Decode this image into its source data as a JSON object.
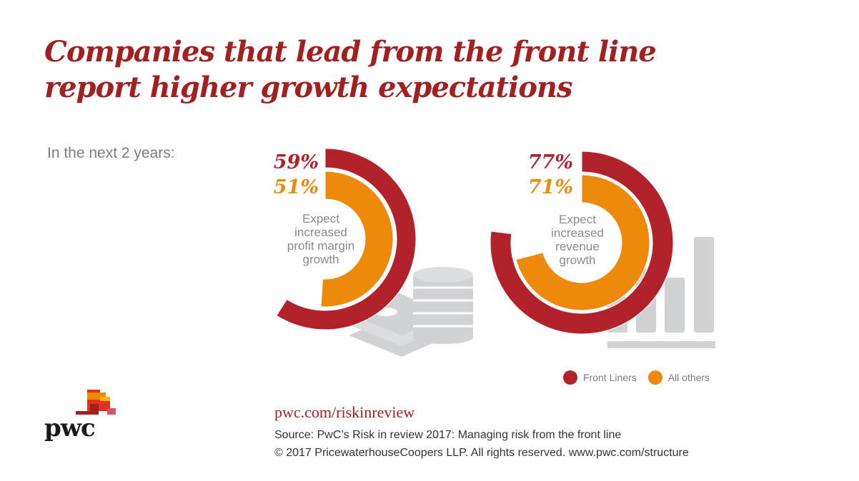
{
  "title_line1": "Companies that lead from the front line",
  "title_line2": "report higher growth expectations",
  "subtitle": "In the next 2 years:",
  "colors": {
    "front_liners": "#b2222b",
    "all_others": "#ee8a0b",
    "gray_icon": "#d1d2d4",
    "brand_red": "#a32020"
  },
  "chart_data": [
    {
      "type": "pie",
      "subtype": "concentric-donut",
      "label": "Expect increased profit margin growth",
      "label_lines": [
        "Expect",
        "increased",
        "profit margin",
        "growth"
      ],
      "series": [
        {
          "name": "Front Liners",
          "value": 59,
          "display": "59%"
        },
        {
          "name": "All others",
          "value": 51,
          "display": "51%"
        }
      ],
      "max": 100,
      "icon": "coins-and-cash-icon"
    },
    {
      "type": "pie",
      "subtype": "concentric-donut",
      "label": "Expect increased revenue growth",
      "label_lines": [
        "Expect",
        "increased",
        "revenue",
        "growth"
      ],
      "series": [
        {
          "name": "Front Liners",
          "value": 77,
          "display": "77%"
        },
        {
          "name": "All others",
          "value": 71,
          "display": "71%"
        }
      ],
      "max": 100,
      "icon": "bar-chart-icon"
    }
  ],
  "legend": [
    {
      "label": "Front Liners",
      "color": "#b2222b"
    },
    {
      "label": "All others",
      "color": "#ee8a0b"
    }
  ],
  "footer": {
    "url": "pwc.com/riskinreview",
    "source": "Source: PwC’s Risk in review 2017: Managing risk from the front line",
    "copyright": "© 2017 PricewaterhouseCoopers LLP. All rights reserved. www.pwc.com/structure",
    "logo_text": "pwc"
  }
}
